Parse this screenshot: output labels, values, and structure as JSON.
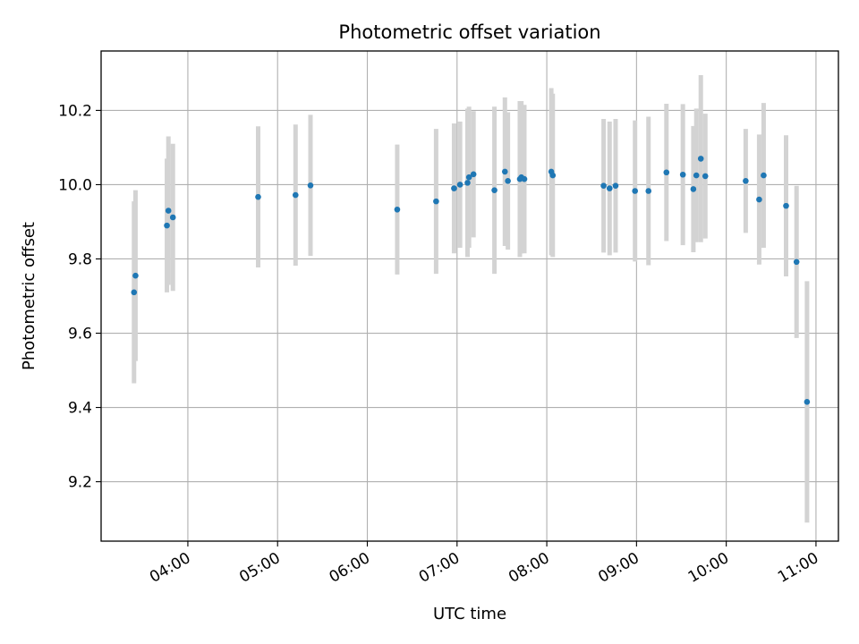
{
  "chart_data": {
    "type": "scatter",
    "title": "Photometric offset variation",
    "xlabel": "UTC time",
    "ylabel": "Photometric offset",
    "x_axis": "time",
    "x_tick_labels": [
      "04:00",
      "05:00",
      "06:00",
      "07:00",
      "08:00",
      "09:00",
      "10:00",
      "11:00"
    ],
    "y_tick_labels": [
      "9.2",
      "9.4",
      "9.6",
      "9.8",
      "10.0",
      "10.2"
    ],
    "ylim": [
      9.04,
      10.36
    ],
    "xlim": [
      "03:02",
      "11:15"
    ],
    "grid": true,
    "marker_color": "#1f77b4",
    "errorbar_color": "#d3d3d3",
    "points": [
      {
        "x": "03:24",
        "y": 9.71,
        "err": 0.245
      },
      {
        "x": "03:25",
        "y": 9.755,
        "err": 0.23
      },
      {
        "x": "03:46",
        "y": 9.89,
        "err": 0.18
      },
      {
        "x": "03:47",
        "y": 9.93,
        "err": 0.2
      },
      {
        "x": "03:50",
        "y": 9.912,
        "err": 0.198
      },
      {
        "x": "04:47",
        "y": 9.967,
        "err": 0.19
      },
      {
        "x": "05:12",
        "y": 9.972,
        "err": 0.19
      },
      {
        "x": "05:22",
        "y": 9.998,
        "err": 0.19
      },
      {
        "x": "06:20",
        "y": 9.933,
        "err": 0.175
      },
      {
        "x": "06:46",
        "y": 9.955,
        "err": 0.195
      },
      {
        "x": "06:58",
        "y": 9.99,
        "err": 0.175
      },
      {
        "x": "07:02",
        "y": 10.0,
        "err": 0.17
      },
      {
        "x": "07:07",
        "y": 10.005,
        "err": 0.2
      },
      {
        "x": "07:08",
        "y": 10.02,
        "err": 0.19
      },
      {
        "x": "07:11",
        "y": 10.028,
        "err": 0.17
      },
      {
        "x": "07:25",
        "y": 9.985,
        "err": 0.225
      },
      {
        "x": "07:32",
        "y": 10.035,
        "err": 0.2
      },
      {
        "x": "07:34",
        "y": 10.01,
        "err": 0.185
      },
      {
        "x": "07:42",
        "y": 10.015,
        "err": 0.21
      },
      {
        "x": "07:43",
        "y": 10.02,
        "err": 0.205
      },
      {
        "x": "07:45",
        "y": 10.015,
        "err": 0.2
      },
      {
        "x": "08:03",
        "y": 10.035,
        "err": 0.225
      },
      {
        "x": "08:04",
        "y": 10.025,
        "err": 0.22
      },
      {
        "x": "08:38",
        "y": 9.997,
        "err": 0.18
      },
      {
        "x": "08:42",
        "y": 9.99,
        "err": 0.18
      },
      {
        "x": "08:46",
        "y": 9.997,
        "err": 0.18
      },
      {
        "x": "08:59",
        "y": 9.983,
        "err": 0.19
      },
      {
        "x": "09:08",
        "y": 9.983,
        "err": 0.2
      },
      {
        "x": "09:20",
        "y": 10.033,
        "err": 0.185
      },
      {
        "x": "09:31",
        "y": 10.027,
        "err": 0.19
      },
      {
        "x": "09:38",
        "y": 9.988,
        "err": 0.17
      },
      {
        "x": "09:40",
        "y": 10.025,
        "err": 0.18
      },
      {
        "x": "09:43",
        "y": 10.07,
        "err": 0.225
      },
      {
        "x": "09:46",
        "y": 10.023,
        "err": 0.168
      },
      {
        "x": "10:13",
        "y": 10.01,
        "err": 0.14
      },
      {
        "x": "10:22",
        "y": 9.96,
        "err": 0.175
      },
      {
        "x": "10:25",
        "y": 10.025,
        "err": 0.195
      },
      {
        "x": "10:40",
        "y": 9.943,
        "err": 0.19
      },
      {
        "x": "10:47",
        "y": 9.792,
        "err": 0.205
      },
      {
        "x": "10:54",
        "y": 9.415,
        "err": 0.325
      }
    ]
  }
}
